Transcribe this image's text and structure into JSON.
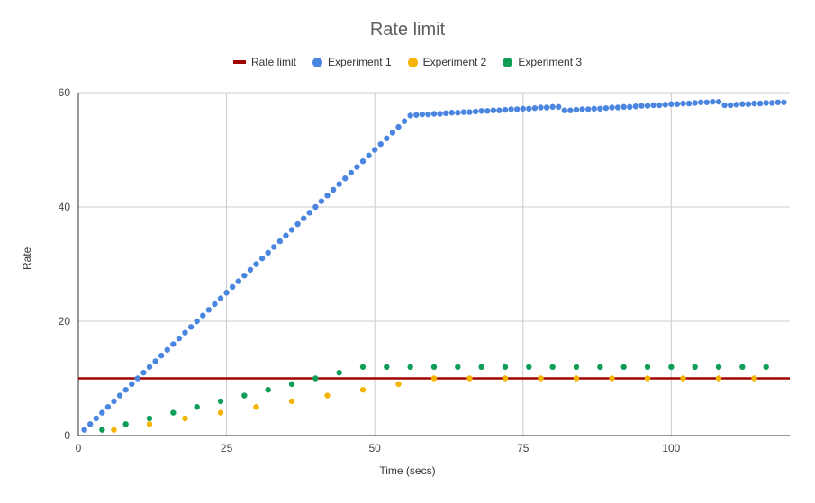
{
  "chart_data": {
    "type": "scatter",
    "title": "Rate limit",
    "xlabel": "Time (secs)",
    "ylabel": "Rate",
    "xlim": [
      0,
      120
    ],
    "ylim": [
      0,
      60
    ],
    "x_ticks": [
      "0",
      "25",
      "50",
      "75",
      "100"
    ],
    "y_ticks": [
      "0",
      "20",
      "40",
      "60"
    ],
    "grid": true,
    "legend_position": "top",
    "series": [
      {
        "name": "Rate limit",
        "kind": "line",
        "color": "#a00000",
        "points": [
          [
            0,
            10
          ],
          [
            120,
            10
          ]
        ]
      },
      {
        "name": "Experiment 1",
        "kind": "points",
        "color": "#4a86e0",
        "points": [
          [
            1,
            1
          ],
          [
            2,
            2
          ],
          [
            3,
            3
          ],
          [
            4,
            4
          ],
          [
            5,
            5
          ],
          [
            6,
            6
          ],
          [
            7,
            7
          ],
          [
            8,
            8
          ],
          [
            9,
            9
          ],
          [
            10,
            10
          ],
          [
            11,
            11
          ],
          [
            12,
            12
          ],
          [
            13,
            13
          ],
          [
            14,
            14
          ],
          [
            15,
            15
          ],
          [
            16,
            16
          ],
          [
            17,
            17
          ],
          [
            18,
            18
          ],
          [
            19,
            19
          ],
          [
            20,
            20
          ],
          [
            21,
            21
          ],
          [
            22,
            22
          ],
          [
            23,
            23
          ],
          [
            24,
            24
          ],
          [
            25,
            25
          ],
          [
            26,
            26
          ],
          [
            27,
            27
          ],
          [
            28,
            28
          ],
          [
            29,
            29
          ],
          [
            30,
            30
          ],
          [
            31,
            31
          ],
          [
            32,
            32
          ],
          [
            33,
            33
          ],
          [
            34,
            34
          ],
          [
            35,
            35
          ],
          [
            36,
            36
          ],
          [
            37,
            37
          ],
          [
            38,
            38
          ],
          [
            39,
            39
          ],
          [
            40,
            40
          ],
          [
            41,
            41
          ],
          [
            42,
            42
          ],
          [
            43,
            43
          ],
          [
            44,
            44
          ],
          [
            45,
            45
          ],
          [
            46,
            46
          ],
          [
            47,
            47
          ],
          [
            48,
            48
          ],
          [
            49,
            49
          ],
          [
            50,
            50
          ],
          [
            51,
            51
          ],
          [
            52,
            52
          ],
          [
            53,
            53
          ],
          [
            54,
            54
          ],
          [
            55,
            55
          ],
          [
            56,
            56
          ],
          [
            57,
            56.1
          ],
          [
            58,
            56.2
          ],
          [
            59,
            56.2
          ],
          [
            60,
            56.3
          ],
          [
            61,
            56.3
          ],
          [
            62,
            56.4
          ],
          [
            63,
            56.5
          ],
          [
            64,
            56.5
          ],
          [
            65,
            56.6
          ],
          [
            66,
            56.6
          ],
          [
            67,
            56.7
          ],
          [
            68,
            56.8
          ],
          [
            69,
            56.8
          ],
          [
            70,
            56.9
          ],
          [
            71,
            56.9
          ],
          [
            72,
            57
          ],
          [
            73,
            57.1
          ],
          [
            74,
            57.1
          ],
          [
            75,
            57.2
          ],
          [
            76,
            57.2
          ],
          [
            77,
            57.3
          ],
          [
            78,
            57.4
          ],
          [
            79,
            57.4
          ],
          [
            80,
            57.5
          ],
          [
            81,
            57.5
          ],
          [
            82,
            56.9
          ],
          [
            83,
            56.9
          ],
          [
            84,
            57
          ],
          [
            85,
            57.1
          ],
          [
            86,
            57.1
          ],
          [
            87,
            57.2
          ],
          [
            88,
            57.2
          ],
          [
            89,
            57.3
          ],
          [
            90,
            57.4
          ],
          [
            91,
            57.4
          ],
          [
            92,
            57.5
          ],
          [
            93,
            57.5
          ],
          [
            94,
            57.6
          ],
          [
            95,
            57.7
          ],
          [
            96,
            57.7
          ],
          [
            97,
            57.8
          ],
          [
            98,
            57.8
          ],
          [
            99,
            57.9
          ],
          [
            100,
            58
          ],
          [
            101,
            58
          ],
          [
            102,
            58.1
          ],
          [
            103,
            58.1
          ],
          [
            104,
            58.2
          ],
          [
            105,
            58.3
          ],
          [
            106,
            58.3
          ],
          [
            107,
            58.4
          ],
          [
            108,
            58.4
          ],
          [
            109,
            57.8
          ],
          [
            110,
            57.8
          ],
          [
            111,
            57.9
          ],
          [
            112,
            58
          ],
          [
            113,
            58
          ],
          [
            114,
            58.1
          ],
          [
            115,
            58.1
          ],
          [
            116,
            58.2
          ],
          [
            117,
            58.2
          ],
          [
            118,
            58.3
          ],
          [
            119,
            58.3
          ]
        ]
      },
      {
        "name": "Experiment 2",
        "kind": "points",
        "color": "#f4b400",
        "points": [
          [
            6,
            1
          ],
          [
            12,
            2
          ],
          [
            18,
            3
          ],
          [
            24,
            4
          ],
          [
            30,
            5
          ],
          [
            36,
            6
          ],
          [
            42,
            7
          ],
          [
            48,
            8
          ],
          [
            54,
            9
          ],
          [
            60,
            10
          ],
          [
            66,
            10
          ],
          [
            72,
            10
          ],
          [
            78,
            10
          ],
          [
            84,
            10
          ],
          [
            90,
            10
          ],
          [
            96,
            10
          ],
          [
            102,
            10
          ],
          [
            108,
            10
          ],
          [
            114,
            10
          ]
        ]
      },
      {
        "name": "Experiment 3",
        "kind": "points",
        "color": "#0f9d58",
        "points": [
          [
            4,
            1
          ],
          [
            8,
            2
          ],
          [
            12,
            3
          ],
          [
            16,
            4
          ],
          [
            20,
            5
          ],
          [
            24,
            6
          ],
          [
            28,
            7
          ],
          [
            32,
            8
          ],
          [
            36,
            9
          ],
          [
            40,
            10
          ],
          [
            44,
            11
          ],
          [
            48,
            12
          ],
          [
            52,
            12
          ],
          [
            56,
            12
          ],
          [
            60,
            12
          ],
          [
            64,
            12
          ],
          [
            68,
            12
          ],
          [
            72,
            12
          ],
          [
            76,
            12
          ],
          [
            80,
            12
          ],
          [
            84,
            12
          ],
          [
            88,
            12
          ],
          [
            92,
            12
          ],
          [
            96,
            12
          ],
          [
            100,
            12
          ],
          [
            104,
            12
          ],
          [
            108,
            12
          ],
          [
            112,
            12
          ],
          [
            116,
            12
          ]
        ]
      }
    ]
  }
}
